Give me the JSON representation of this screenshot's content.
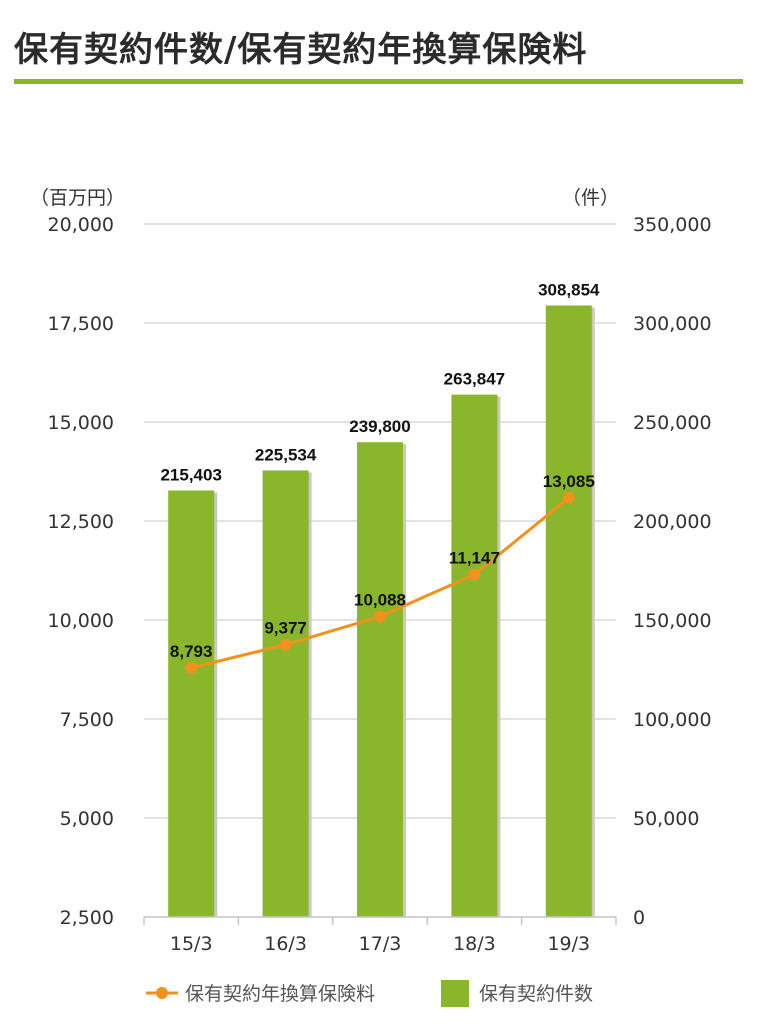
{
  "page": {
    "title": "保有契約件数/保有契約年換算保険料"
  },
  "colors": {
    "bar": "#8ab62b",
    "bar_shadow": "#c7cbbd",
    "line": "#f0921c",
    "grid": "#d0d0d0",
    "title_rule": "#8ab62b"
  },
  "chart_data": {
    "type": "bar",
    "categories": [
      "15/3",
      "16/3",
      "17/3",
      "18/3",
      "19/3"
    ],
    "series": [
      {
        "name": "保有契約件数",
        "type": "bar",
        "axis": "right",
        "values": [
          215403,
          225534,
          239800,
          263847,
          308854
        ],
        "labels": [
          "215,403",
          "225,534",
          "239,800",
          "263,847",
          "308,854"
        ]
      },
      {
        "name": "保有契約年換算保険料",
        "type": "line",
        "axis": "left",
        "values": [
          8793,
          9377,
          10088,
          11147,
          13085
        ],
        "labels": [
          "8,793",
          "9,377",
          "10,088",
          "11,147",
          "13,085"
        ]
      }
    ],
    "left_axis": {
      "unit": "（百万円）",
      "ylim": [
        2500,
        20000
      ],
      "ticks": [
        2500,
        5000,
        7500,
        10000,
        12500,
        15000,
        17500,
        20000
      ],
      "tick_labels": [
        "2,500",
        "5,000",
        "7,500",
        "10,000",
        "12,500",
        "15,000",
        "17,500",
        "20,000"
      ]
    },
    "right_axis": {
      "unit": "（件）",
      "ylim": [
        0,
        350000
      ],
      "ticks": [
        0,
        50000,
        100000,
        150000,
        200000,
        250000,
        300000,
        350000
      ],
      "tick_labels": [
        "0",
        "50,000",
        "100,000",
        "150,000",
        "200,000",
        "250,000",
        "300,000",
        "350,000"
      ]
    },
    "grid": true,
    "legend": {
      "placement": "bottom",
      "items": [
        {
          "name": "保有契約年換算保険料",
          "kind": "line"
        },
        {
          "name": "保有契約件数",
          "kind": "bar"
        }
      ]
    }
  }
}
